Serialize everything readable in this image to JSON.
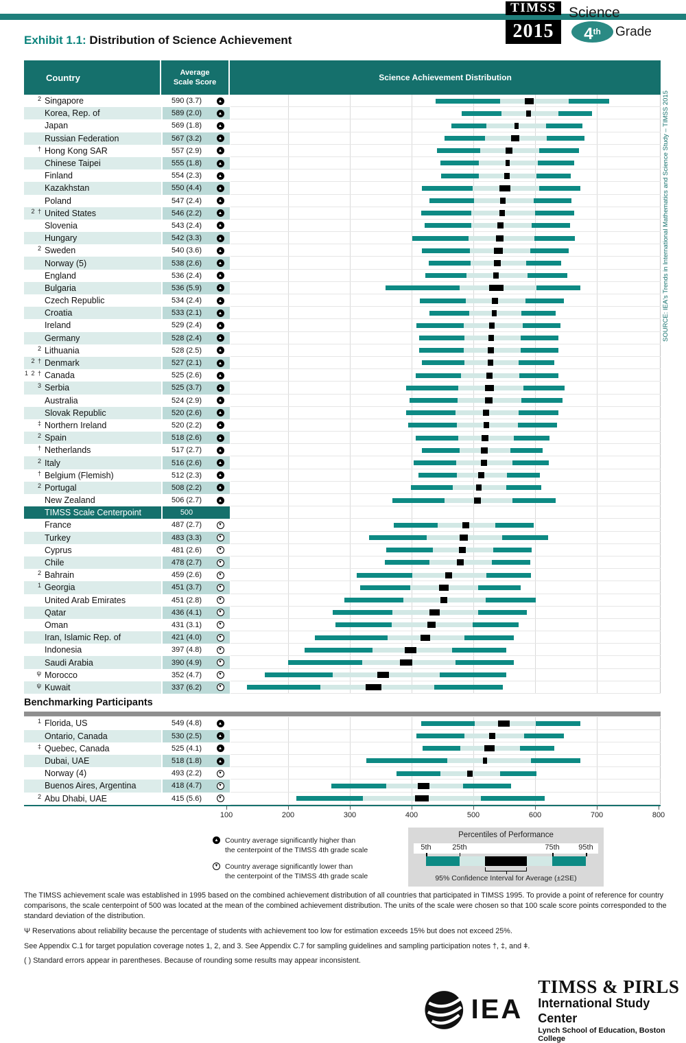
{
  "page": {
    "exhibit_label": "Exhibit 1.1:",
    "exhibit_title": "Distribution of Science Achievement",
    "logo": {
      "line1": "TIMSS",
      "line2": "2015",
      "subject": "Science",
      "grade_num": "4",
      "grade_suffix": "th",
      "grade_word": "Grade"
    },
    "source_vertical": "SOURCE: IEA's Trends in International Mathematics and Science Study – TIMSS 2015"
  },
  "table": {
    "col_country": "Country",
    "col_score_line1": "Average",
    "col_score_line2": "Scale Score",
    "col_distribution": "Science Achievement Distribution",
    "centerpoint": {
      "label": "TIMSS Scale Centerpoint",
      "score": "500"
    },
    "benchmark_header": "Benchmarking Participants"
  },
  "chart_data": {
    "type": "table",
    "subtype": "percentile-band distribution chart (5th-25th-75th-95th percentiles with 95% CI box)",
    "x_axis": {
      "min": 100,
      "max": 800,
      "ticks": [
        100,
        200,
        300,
        400,
        500,
        600,
        700,
        800
      ]
    },
    "rows": [
      {
        "note": "2",
        "country": "Singapore",
        "avg": 590,
        "se": "3.7",
        "dir": "up",
        "p5": 438,
        "p25": 543,
        "p75": 654,
        "p95": 720
      },
      {
        "note": "",
        "country": "Korea, Rep. of",
        "avg": 589,
        "se": "2.0",
        "dir": "up",
        "p5": 480,
        "p25": 545,
        "p75": 637,
        "p95": 692
      },
      {
        "note": "",
        "country": "Japan",
        "avg": 569,
        "se": "1.8",
        "dir": "up",
        "p5": 463,
        "p25": 520,
        "p75": 617,
        "p95": 676
      },
      {
        "note": "",
        "country": "Russian Federation",
        "avg": 567,
        "se": "3.2",
        "dir": "up",
        "p5": 452,
        "p25": 518,
        "p75": 618,
        "p95": 680
      },
      {
        "note": "†",
        "country": "Hong Kong SAR",
        "avg": 557,
        "se": "2.9",
        "dir": "up",
        "p5": 440,
        "p25": 510,
        "p75": 606,
        "p95": 671
      },
      {
        "note": "",
        "country": "Chinese Taipei",
        "avg": 555,
        "se": "1.8",
        "dir": "up",
        "p5": 445,
        "p25": 508,
        "p75": 604,
        "p95": 663
      },
      {
        "note": "",
        "country": "Finland",
        "avg": 554,
        "se": "2.3",
        "dir": "up",
        "p5": 447,
        "p25": 508,
        "p75": 602,
        "p95": 657
      },
      {
        "note": "",
        "country": "Kazakhstan",
        "avg": 550,
        "se": "4.4",
        "dir": "up",
        "p5": 415,
        "p25": 498,
        "p75": 606,
        "p95": 673
      },
      {
        "note": "",
        "country": "Poland",
        "avg": 547,
        "se": "2.4",
        "dir": "up",
        "p5": 428,
        "p25": 500,
        "p75": 597,
        "p95": 658
      },
      {
        "note": "2 †",
        "country": "United States",
        "avg": 546,
        "se": "2.2",
        "dir": "up",
        "p5": 414,
        "p25": 496,
        "p75": 599,
        "p95": 663
      },
      {
        "note": "",
        "country": "Slovenia",
        "avg": 543,
        "se": "2.4",
        "dir": "up",
        "p5": 420,
        "p25": 496,
        "p75": 594,
        "p95": 656
      },
      {
        "note": "",
        "country": "Hungary",
        "avg": 542,
        "se": "3.3",
        "dir": "up",
        "p5": 400,
        "p25": 491,
        "p75": 598,
        "p95": 664
      },
      {
        "note": "2",
        "country": "Sweden",
        "avg": 540,
        "se": "3.6",
        "dir": "up",
        "p5": 415,
        "p25": 493,
        "p75": 591,
        "p95": 654
      },
      {
        "note": "",
        "country": "Norway (5)",
        "avg": 538,
        "se": "2.6",
        "dir": "up",
        "p5": 427,
        "p25": 495,
        "p75": 585,
        "p95": 642
      },
      {
        "note": "",
        "country": "England",
        "avg": 536,
        "se": "2.4",
        "dir": "up",
        "p5": 421,
        "p25": 488,
        "p75": 587,
        "p95": 652
      },
      {
        "note": "",
        "country": "Bulgaria",
        "avg": 536,
        "se": "5.9",
        "dir": "up",
        "p5": 356,
        "p25": 477,
        "p75": 602,
        "p95": 673
      },
      {
        "note": "",
        "country": "Czech Republic",
        "avg": 534,
        "se": "2.4",
        "dir": "up",
        "p5": 412,
        "p25": 487,
        "p75": 584,
        "p95": 646
      },
      {
        "note": "",
        "country": "Croatia",
        "avg": 533,
        "se": "2.1",
        "dir": "up",
        "p5": 428,
        "p25": 492,
        "p75": 577,
        "p95": 633
      },
      {
        "note": "",
        "country": "Ireland",
        "avg": 529,
        "se": "2.4",
        "dir": "up",
        "p5": 406,
        "p25": 483,
        "p75": 579,
        "p95": 641
      },
      {
        "note": "",
        "country": "Germany",
        "avg": 528,
        "se": "2.4",
        "dir": "up",
        "p5": 411,
        "p25": 484,
        "p75": 576,
        "p95": 637
      },
      {
        "note": "2",
        "country": "Lithuania",
        "avg": 528,
        "se": "2.5",
        "dir": "up",
        "p5": 411,
        "p25": 483,
        "p75": 576,
        "p95": 637
      },
      {
        "note": "2 †",
        "country": "Denmark",
        "avg": 527,
        "se": "2.1",
        "dir": "up",
        "p5": 415,
        "p25": 484,
        "p75": 573,
        "p95": 631
      },
      {
        "note": "1 2 †",
        "country": "Canada",
        "avg": 525,
        "se": "2.6",
        "dir": "up",
        "p5": 405,
        "p25": 479,
        "p75": 574,
        "p95": 637
      },
      {
        "note": "3",
        "country": "Serbia",
        "avg": 525,
        "se": "3.7",
        "dir": "up",
        "p5": 390,
        "p25": 474,
        "p75": 580,
        "p95": 647
      },
      {
        "note": "",
        "country": "Australia",
        "avg": 524,
        "se": "2.9",
        "dir": "up",
        "p5": 395,
        "p25": 473,
        "p75": 577,
        "p95": 644
      },
      {
        "note": "",
        "country": "Slovak Republic",
        "avg": 520,
        "se": "2.6",
        "dir": "up",
        "p5": 390,
        "p25": 470,
        "p75": 573,
        "p95": 637
      },
      {
        "note": "‡",
        "country": "Northern Ireland",
        "avg": 520,
        "se": "2.2",
        "dir": "up",
        "p5": 393,
        "p25": 472,
        "p75": 572,
        "p95": 635
      },
      {
        "note": "2",
        "country": "Spain",
        "avg": 518,
        "se": "2.6",
        "dir": "up",
        "p5": 405,
        "p25": 474,
        "p75": 565,
        "p95": 623
      },
      {
        "note": "†",
        "country": "Netherlands",
        "avg": 517,
        "se": "2.7",
        "dir": "up",
        "p5": 415,
        "p25": 477,
        "p75": 559,
        "p95": 612
      },
      {
        "note": "2",
        "country": "Italy",
        "avg": 516,
        "se": "2.6",
        "dir": "up",
        "p5": 402,
        "p25": 471,
        "p75": 563,
        "p95": 622
      },
      {
        "note": "†",
        "country": "Belgium (Flemish)",
        "avg": 512,
        "se": "2.3",
        "dir": "up",
        "p5": 410,
        "p25": 472,
        "p75": 554,
        "p95": 607
      },
      {
        "note": "2",
        "country": "Portugal",
        "avg": 508,
        "se": "2.2",
        "dir": "up",
        "p5": 398,
        "p25": 466,
        "p75": 552,
        "p95": 609
      },
      {
        "note": "",
        "country": "New Zealand",
        "avg": 506,
        "se": "2.7",
        "dir": "up",
        "p5": 368,
        "p25": 452,
        "p75": 563,
        "p95": 633
      },
      {
        "note": "",
        "country": "France",
        "avg": 487,
        "se": "2.7",
        "dir": "down",
        "p5": 370,
        "p25": 441,
        "p75": 535,
        "p95": 597
      },
      {
        "note": "",
        "country": "Turkey",
        "avg": 483,
        "se": "3.3",
        "dir": "down",
        "p5": 330,
        "p25": 423,
        "p75": 546,
        "p95": 621
      },
      {
        "note": "",
        "country": "Cyprus",
        "avg": 481,
        "se": "2.6",
        "dir": "down",
        "p5": 358,
        "p25": 433,
        "p75": 531,
        "p95": 594
      },
      {
        "note": "",
        "country": "Chile",
        "avg": 478,
        "se": "2.7",
        "dir": "down",
        "p5": 355,
        "p25": 428,
        "p75": 529,
        "p95": 592
      },
      {
        "note": "2",
        "country": "Bahrain",
        "avg": 459,
        "se": "2.6",
        "dir": "down",
        "p5": 310,
        "p25": 400,
        "p75": 520,
        "p95": 593
      },
      {
        "note": "1",
        "country": "Georgia",
        "avg": 451,
        "se": "3.7",
        "dir": "down",
        "p5": 315,
        "p25": 397,
        "p75": 507,
        "p95": 576
      },
      {
        "note": "",
        "country": "United Arab Emirates",
        "avg": 451,
        "se": "2.8",
        "dir": "down",
        "p5": 290,
        "p25": 385,
        "p75": 519,
        "p95": 601
      },
      {
        "note": "",
        "country": "Qatar",
        "avg": 436,
        "se": "4.1",
        "dir": "down",
        "p5": 270,
        "p25": 367,
        "p75": 507,
        "p95": 586
      },
      {
        "note": "",
        "country": "Oman",
        "avg": 431,
        "se": "3.1",
        "dir": "down",
        "p5": 275,
        "p25": 366,
        "p75": 498,
        "p95": 573
      },
      {
        "note": "",
        "country": "Iran, Islamic Rep. of",
        "avg": 421,
        "se": "4.0",
        "dir": "down",
        "p5": 242,
        "p25": 360,
        "p75": 485,
        "p95": 565
      },
      {
        "note": "",
        "country": "Indonesia",
        "avg": 397,
        "se": "4.8",
        "dir": "down",
        "p5": 225,
        "p25": 335,
        "p75": 465,
        "p95": 552
      },
      {
        "note": "",
        "country": "Saudi Arabia",
        "avg": 390,
        "se": "4.9",
        "dir": "down",
        "p5": 198,
        "p25": 318,
        "p75": 470,
        "p95": 565
      },
      {
        "note": "ψ",
        "country": "Morocco",
        "avg": 352,
        "se": "4.7",
        "dir": "down",
        "p5": 160,
        "p25": 270,
        "p75": 444,
        "p95": 553
      },
      {
        "note": "ψ",
        "country": "Kuwait",
        "avg": 337,
        "se": "6.2",
        "dir": "down",
        "p5": 131,
        "p25": 251,
        "p75": 436,
        "p95": 547
      }
    ],
    "centerpoint_row_index": 33,
    "benchmarking_rows": [
      {
        "note": "1",
        "country": "Florida, US",
        "avg": 549,
        "se": "4.8",
        "dir": "up",
        "p5": 414,
        "p25": 501,
        "p75": 600,
        "p95": 673
      },
      {
        "note": "",
        "country": "Ontario, Canada",
        "avg": 530,
        "se": "2.5",
        "dir": "up",
        "p5": 407,
        "p25": 485,
        "p75": 581,
        "p95": 646
      },
      {
        "note": "‡",
        "country": "Quebec, Canada",
        "avg": 525,
        "se": "4.1",
        "dir": "up",
        "p5": 417,
        "p25": 478,
        "p75": 575,
        "p95": 631
      },
      {
        "note": "",
        "country": "Dubai, UAE",
        "avg": 518,
        "se": "1.8",
        "dir": "up",
        "p5": 325,
        "p25": 457,
        "p75": 593,
        "p95": 673
      },
      {
        "note": "",
        "country": "Norway (4)",
        "avg": 493,
        "se": "2.2",
        "dir": "down",
        "p5": 374,
        "p25": 446,
        "p75": 543,
        "p95": 602
      },
      {
        "note": "",
        "country": "Buenos Aires, Argentina",
        "avg": 418,
        "se": "4.7",
        "dir": "down",
        "p5": 268,
        "p25": 358,
        "p75": 482,
        "p95": 560
      },
      {
        "note": "2",
        "country": "Abu Dhabi, UAE",
        "avg": 415,
        "se": "5.6",
        "dir": "down",
        "p5": 211,
        "p25": 320,
        "p75": 511,
        "p95": 615
      }
    ]
  },
  "legend": {
    "higher_line1": "Country average significantly higher than",
    "higher_line2": "the centerpoint of the TIMSS 4th grade scale",
    "lower_line1": "Country average significantly lower than",
    "lower_line2": "the centerpoint of the TIMSS 4th grade scale",
    "percentiles": {
      "title": "Percentiles of Performance",
      "labels": [
        "5th",
        "25th",
        "75th",
        "95th"
      ],
      "ci_label": "95% Confidence Interval for Average (±2SE)"
    }
  },
  "footnotes": [
    "The TIMSS achievement scale was established in 1995 based on the combined achievement distribution of all countries that participated in TIMSS 1995. To provide a point of reference for country comparisons, the scale centerpoint of 500 was located at the mean of the combined achievement distribution. The units of the scale were chosen so that 100 scale score points corresponded to the standard deviation of the distribution.",
    "Ψ  Reservations about reliability because the percentage of students with achievement too low for estimation exceeds 15% but does not exceed 25%.",
    "See Appendix C.1 for target population coverage notes 1, 2, and 3. See Appendix C.7 for sampling guidelines and sampling participation notes †, ‡, and ǂ.",
    "( )  Standard errors appear in parentheses. Because of rounding some results may appear inconsistent."
  ],
  "footer": {
    "org": "IEA",
    "center_line1": "TIMSS & PIRLS",
    "center_line2": "International Study Center",
    "center_line3": "Lynch School of Education, Boston College"
  },
  "colors": {
    "teal_header": "#15706c",
    "teal_band": "#1f7f7b",
    "bar_teal": "#0d8a84",
    "bar_light": "#d2e8e5",
    "row_shade": "#dcecea",
    "score_shade": "#bcdad8",
    "ci_black": "#000000"
  }
}
